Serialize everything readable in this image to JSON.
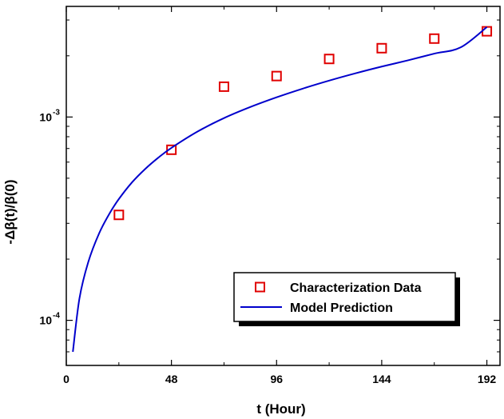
{
  "chart_data": {
    "type": "scatter",
    "xlabel": "t (Hour)",
    "ylabel": "-Δβ(t)/β(0)",
    "xlim": [
      0,
      198
    ],
    "ylim": [
      6e-05,
      0.0035
    ],
    "yscale": "log",
    "xticks": [
      0,
      48,
      96,
      144,
      192
    ],
    "xtick_labels": [
      "0",
      "48",
      "96",
      "144",
      "192"
    ],
    "yticks": [
      0.0001,
      0.001
    ],
    "ytick_base": "10",
    "ytick_exponents": [
      "-4",
      "-3"
    ],
    "grid": false,
    "legend_placement": "lower-right",
    "series": [
      {
        "name": "Characterization Data",
        "kind": "markers",
        "marker": "open-square",
        "color": "#e00000",
        "x": [
          24,
          48,
          72,
          96,
          120,
          144,
          168,
          192
        ],
        "y": [
          0.00033,
          0.00069,
          0.00141,
          0.00159,
          0.00193,
          0.00218,
          0.00243,
          0.00264
        ]
      },
      {
        "name": "Model Prediction",
        "kind": "line",
        "color": "#0000cc",
        "x": [
          3,
          6,
          10,
          15,
          20,
          24,
          30,
          36,
          42,
          48,
          60,
          72,
          84,
          96,
          108,
          120,
          132,
          144,
          156,
          168,
          180,
          192
        ],
        "y": [
          7e-05,
          0.000128,
          0.000193,
          0.000268,
          0.000339,
          0.000395,
          0.000477,
          0.000555,
          0.000631,
          0.000705,
          0.000849,
          0.000988,
          0.00112,
          0.00125,
          0.00138,
          0.00151,
          0.00164,
          0.00177,
          0.0019,
          0.00205,
          0.0022,
          0.00277
        ]
      }
    ]
  }
}
